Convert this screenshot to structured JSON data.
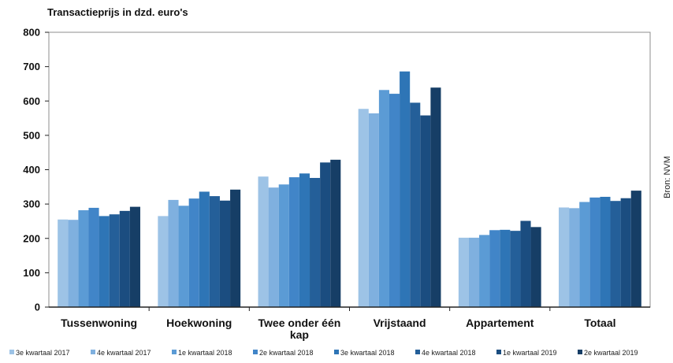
{
  "source": "Bron: NVM",
  "colors": [
    "#9dc3e6",
    "#7fb0df",
    "#5b9bd5",
    "#4185c8",
    "#2e75b6",
    "#245f99",
    "#1b4d80",
    "#163e66"
  ],
  "chart_data": {
    "type": "bar",
    "title": "Transactieprijs in dzd. euro's",
    "categories": [
      "Tussenwoning",
      "Hoekwoning",
      "Twee onder één kap",
      "Vrijstaand",
      "Appartement",
      "Totaal"
    ],
    "ylim": [
      0,
      800
    ],
    "yticks": [
      0,
      100,
      200,
      300,
      400,
      500,
      600,
      700,
      800
    ],
    "grid": false,
    "legend": "bottom",
    "series": [
      {
        "name": "3e kwartaal 2017",
        "values": [
          255,
          265,
          380,
          577,
          202,
          290
        ]
      },
      {
        "name": "4e kwartaal 2017",
        "values": [
          254,
          312,
          348,
          564,
          202,
          288
        ]
      },
      {
        "name": "1e kwartaal 2018",
        "values": [
          282,
          295,
          357,
          632,
          210,
          306
        ]
      },
      {
        "name": "2e kwartaal 2018",
        "values": [
          289,
          316,
          378,
          621,
          224,
          319
        ]
      },
      {
        "name": "3e kwartaal 2018",
        "values": [
          265,
          336,
          389,
          686,
          225,
          321
        ]
      },
      {
        "name": "4e kwartaal 2018",
        "values": [
          270,
          323,
          376,
          595,
          222,
          309
        ]
      },
      {
        "name": "1e kwartaal 2019",
        "values": [
          280,
          310,
          421,
          558,
          251,
          317
        ]
      },
      {
        "name": "2e kwartaal 2019",
        "values": [
          292,
          342,
          429,
          639,
          233,
          339
        ]
      }
    ]
  }
}
